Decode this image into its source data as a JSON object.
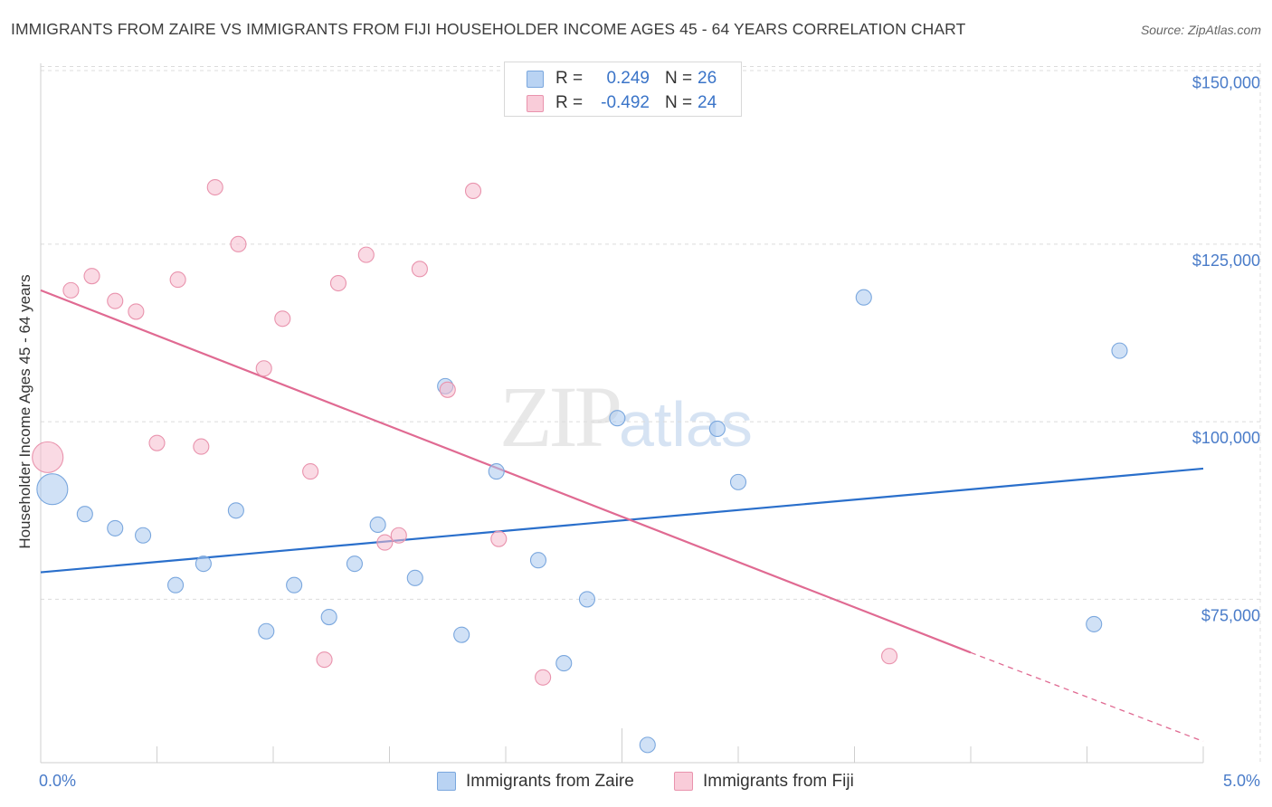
{
  "chart_data": {
    "type": "scatter",
    "title": "IMMIGRANTS FROM ZAIRE VS IMMIGRANTS FROM FIJI HOUSEHOLDER INCOME AGES 45 - 64 YEARS CORRELATION CHART",
    "source": "Source: ZipAtlas.com",
    "xlabel": "",
    "ylabel": "Householder Income Ages 45 - 64 years",
    "x_min_label": "0.0%",
    "x_max_label": "5.0%",
    "xlim": [
      0,
      5
    ],
    "ylim": [
      52000,
      153000
    ],
    "yticks": [
      {
        "value": 75000,
        "label": "$75,000"
      },
      {
        "value": 100000,
        "label": "$100,000"
      },
      {
        "value": 125000,
        "label": "$125,000"
      },
      {
        "value": 150000,
        "label": "$150,000"
      }
    ],
    "grid": true,
    "legend_stats": [
      {
        "r_label": "R =",
        "r_value": "0.249",
        "n_label": "N =",
        "n_value": "26"
      },
      {
        "r_label": "R =",
        "r_value": "-0.492",
        "n_label": "N =",
        "n_value": "24"
      }
    ],
    "series": [
      {
        "name": "Immigrants from Zaire",
        "color": "#a9c8ef",
        "stroke": "#7aa7de",
        "line_color": "#2a6fcb",
        "trend": {
          "x": [
            0,
            5
          ],
          "y": [
            78800,
            93400
          ]
        },
        "points": [
          {
            "x": 0.05,
            "y": 90500,
            "size": "large"
          },
          {
            "x": 0.19,
            "y": 87000
          },
          {
            "x": 0.32,
            "y": 85000
          },
          {
            "x": 0.44,
            "y": 84000
          },
          {
            "x": 0.58,
            "y": 77000
          },
          {
            "x": 0.7,
            "y": 80000
          },
          {
            "x": 0.84,
            "y": 87500
          },
          {
            "x": 0.97,
            "y": 70500
          },
          {
            "x": 1.09,
            "y": 77000
          },
          {
            "x": 1.24,
            "y": 72500
          },
          {
            "x": 1.35,
            "y": 80000
          },
          {
            "x": 1.45,
            "y": 85500
          },
          {
            "x": 1.61,
            "y": 78000
          },
          {
            "x": 1.74,
            "y": 105000
          },
          {
            "x": 1.81,
            "y": 70000
          },
          {
            "x": 1.96,
            "y": 93000
          },
          {
            "x": 2.14,
            "y": 80500
          },
          {
            "x": 2.25,
            "y": 66000
          },
          {
            "x": 2.35,
            "y": 75000
          },
          {
            "x": 2.48,
            "y": 100500
          },
          {
            "x": 2.61,
            "y": 54500
          },
          {
            "x": 2.91,
            "y": 99000
          },
          {
            "x": 3.0,
            "y": 91500
          },
          {
            "x": 3.54,
            "y": 117500
          },
          {
            "x": 4.53,
            "y": 71500
          },
          {
            "x": 4.64,
            "y": 110000
          }
        ]
      },
      {
        "name": "Immigrants from Fiji",
        "color": "#f5bccd",
        "stroke": "#e993ad",
        "line_color": "#e06a92",
        "trend": {
          "x": [
            0,
            4.0
          ],
          "y": [
            118500,
            67500
          ]
        },
        "trend_ext": {
          "x": [
            4.0,
            5.0
          ],
          "y": [
            67500,
            55000
          ]
        },
        "points": [
          {
            "x": 0.03,
            "y": 95000,
            "size": "large"
          },
          {
            "x": 0.13,
            "y": 118500
          },
          {
            "x": 0.22,
            "y": 120500
          },
          {
            "x": 0.32,
            "y": 117000
          },
          {
            "x": 0.41,
            "y": 115500
          },
          {
            "x": 0.5,
            "y": 97000
          },
          {
            "x": 0.59,
            "y": 120000
          },
          {
            "x": 0.69,
            "y": 96500
          },
          {
            "x": 0.75,
            "y": 133000
          },
          {
            "x": 0.85,
            "y": 125000
          },
          {
            "x": 0.96,
            "y": 107500
          },
          {
            "x": 1.04,
            "y": 114500
          },
          {
            "x": 1.16,
            "y": 93000
          },
          {
            "x": 1.22,
            "y": 66500
          },
          {
            "x": 1.28,
            "y": 119500
          },
          {
            "x": 1.4,
            "y": 123500
          },
          {
            "x": 1.48,
            "y": 83000
          },
          {
            "x": 1.54,
            "y": 84000
          },
          {
            "x": 1.63,
            "y": 121500
          },
          {
            "x": 1.75,
            "y": 104500
          },
          {
            "x": 1.86,
            "y": 132500
          },
          {
            "x": 1.97,
            "y": 83500
          },
          {
            "x": 2.16,
            "y": 64000
          },
          {
            "x": 3.65,
            "y": 67000
          }
        ]
      }
    ]
  },
  "watermark": {
    "zip": "ZIP",
    "atlas": "atlas"
  }
}
